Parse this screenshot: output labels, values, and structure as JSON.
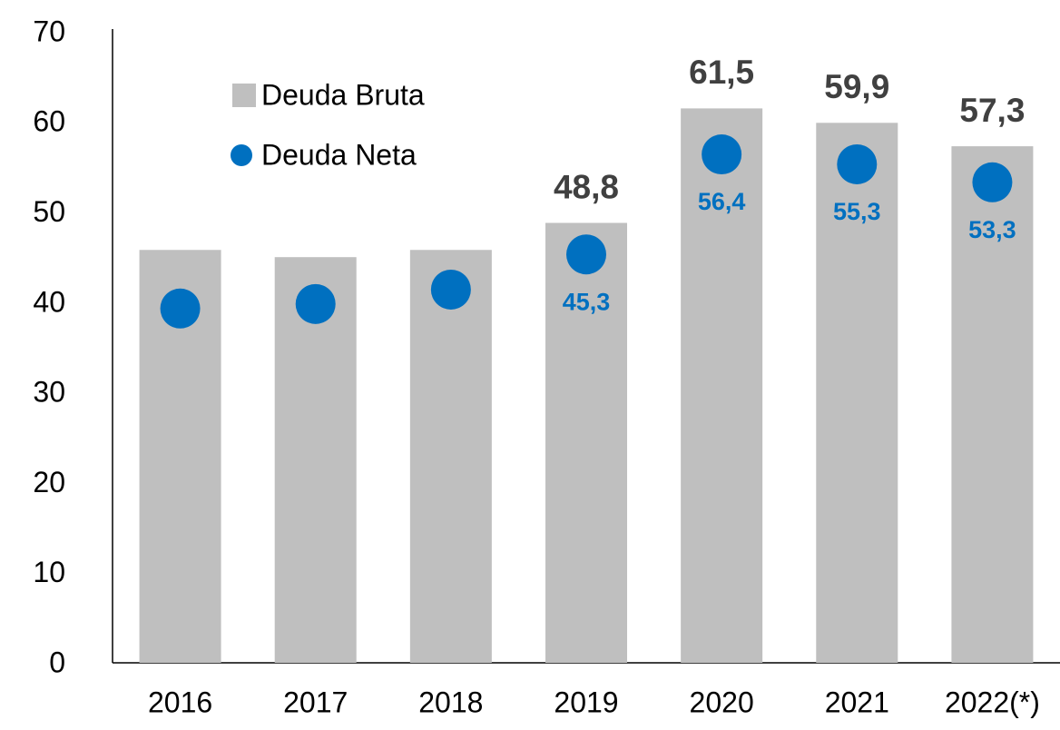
{
  "chart_data": {
    "type": "bar",
    "categories": [
      "2016",
      "2017",
      "2018",
      "2019",
      "2020",
      "2021",
      "2022(*)"
    ],
    "series": [
      {
        "name": "Deuda Bruta",
        "type": "bar",
        "color": "#bfbfbf",
        "values": [
          45.8,
          45.0,
          45.8,
          48.8,
          61.5,
          59.9,
          57.3
        ],
        "value_labels": [
          null,
          null,
          null,
          "48,8",
          "61,5",
          "59,9",
          "57,3"
        ]
      },
      {
        "name": "Deuda Neta",
        "type": "scatter",
        "color": "#0070c0",
        "values": [
          39.3,
          39.8,
          41.4,
          45.3,
          56.4,
          55.3,
          53.3
        ],
        "value_labels": [
          null,
          null,
          null,
          "45,3",
          "56,4",
          "55,3",
          "53,3"
        ]
      }
    ],
    "ylim": [
      0,
      70
    ],
    "yticks": [
      0,
      10,
      20,
      30,
      40,
      50,
      60,
      70
    ],
    "grid": false
  }
}
